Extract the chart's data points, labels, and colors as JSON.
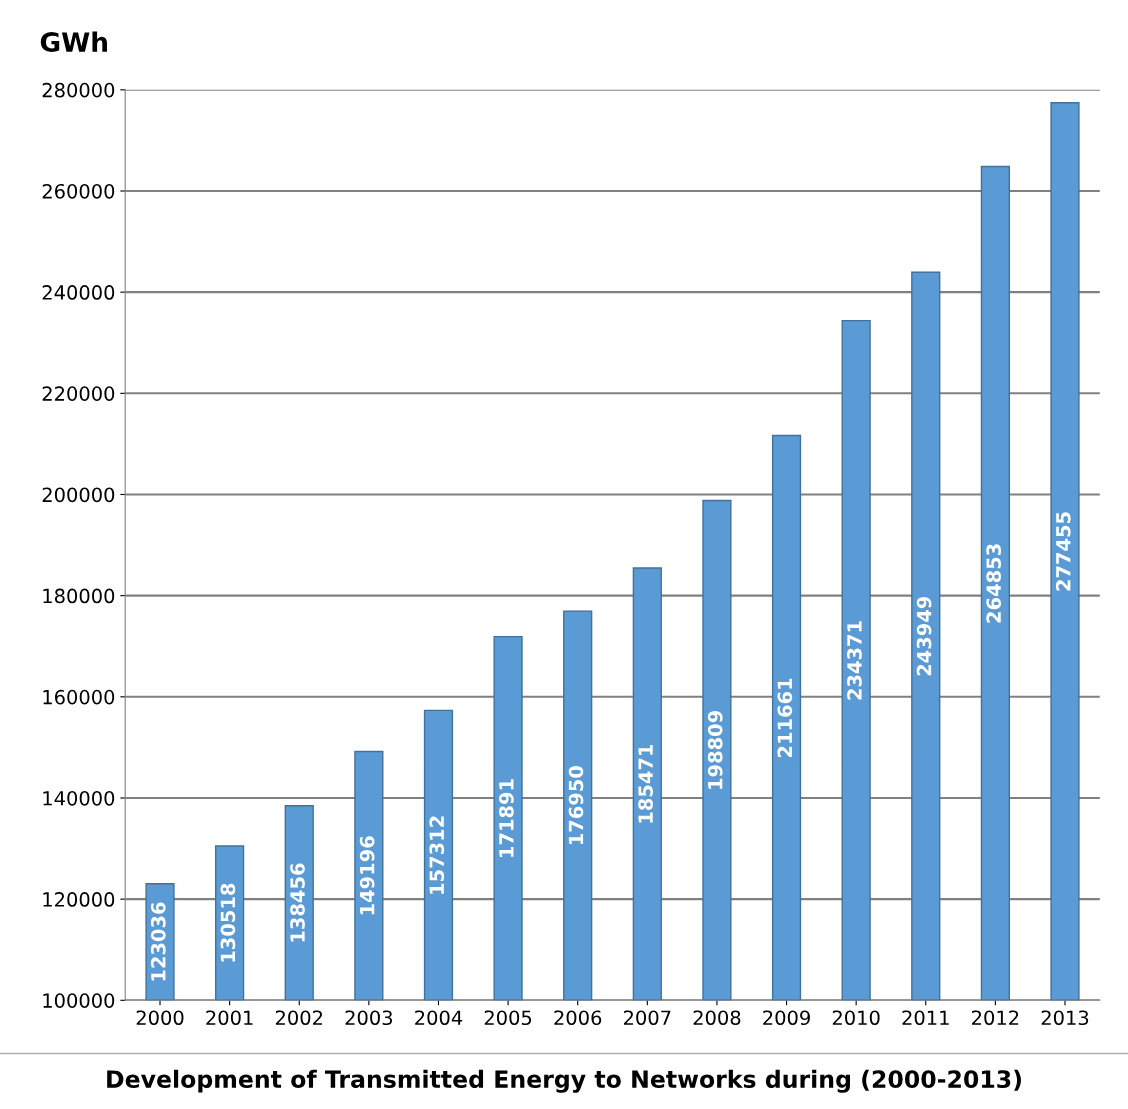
{
  "chart_data": {
    "type": "bar",
    "title": "Development of Transmitted Energy to Networks during (2000-2013)",
    "ylabel": "GWh",
    "categories": [
      "2000",
      "2001",
      "2002",
      "2003",
      "2004",
      "2005",
      "2006",
      "2007",
      "2008",
      "2009",
      "2010",
      "2011",
      "2012",
      "2013"
    ],
    "values": [
      123036,
      130518,
      138456,
      149196,
      157312,
      171891,
      176950,
      185471,
      198809,
      211661,
      234371,
      243949,
      264853,
      277455
    ],
    "color": "#5b9bd5",
    "ylim": [
      100000,
      280000
    ],
    "yticks": [
      100000,
      120000,
      140000,
      160000,
      180000,
      200000,
      220000,
      240000,
      260000,
      280000
    ],
    "grid": "y",
    "data_labels": true
  }
}
